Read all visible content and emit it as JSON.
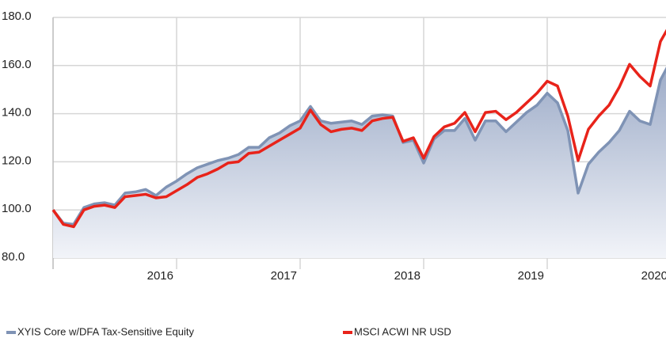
{
  "chart_data": {
    "type": "area-line",
    "categories": [
      null,
      null,
      null,
      null,
      null,
      null,
      null,
      null,
      null,
      null,
      null,
      null,
      "2016",
      null,
      null,
      null,
      null,
      null,
      null,
      null,
      null,
      null,
      null,
      null,
      "2017",
      null,
      null,
      null,
      null,
      null,
      null,
      null,
      null,
      null,
      null,
      null,
      "2018",
      null,
      null,
      null,
      null,
      null,
      null,
      null,
      null,
      null,
      null,
      null,
      "2019",
      null,
      null,
      null,
      null,
      null,
      null,
      null,
      null,
      null,
      null,
      null,
      "2020"
    ],
    "series": [
      {
        "name": "XYIS Core w/DFA Tax-Sensitive Equity",
        "color": "#7f93b5",
        "fill": true,
        "values": [
          100,
          94.5,
          94,
          101,
          102.5,
          103,
          102,
          107,
          107.5,
          108.5,
          106,
          109.5,
          112,
          115,
          117.5,
          119,
          120.5,
          121.5,
          123,
          126,
          126,
          130,
          132,
          135,
          137,
          143,
          137,
          136,
          136.5,
          137,
          135.5,
          139,
          139.5,
          139,
          128,
          129,
          119.5,
          129.5,
          133,
          133,
          138,
          129,
          137,
          137,
          132.5,
          136.5,
          140.5,
          143.5,
          148.5,
          144.5,
          133,
          107,
          119,
          124,
          128,
          133,
          141,
          137,
          135.5,
          154,
          162
        ]
      },
      {
        "name": "MSCI ACWI NR USD",
        "color": "#e8231a",
        "fill": false,
        "values": [
          100,
          94,
          93,
          100,
          101.5,
          102,
          101,
          105.5,
          106,
          106.5,
          105,
          105.5,
          108,
          110.5,
          113.5,
          115,
          117,
          119.5,
          120,
          123.5,
          124,
          126.5,
          129,
          131.5,
          134,
          141.5,
          135.5,
          132.5,
          133.5,
          134,
          133,
          137,
          138,
          138.5,
          128.5,
          130,
          121.5,
          130.5,
          134.5,
          136,
          140.5,
          132.5,
          140.5,
          141,
          137.5,
          140.5,
          144.5,
          148.5,
          153.5,
          151.5,
          139,
          120.5,
          133.5,
          139,
          143.5,
          151,
          160.5,
          155.5,
          151.5,
          170,
          177.5
        ]
      }
    ],
    "ylim": [
      80,
      180
    ],
    "yticks": [
      {
        "value": 80,
        "label": "80.0"
      },
      {
        "value": 100,
        "label": "100.0"
      },
      {
        "value": 120,
        "label": "120.0"
      },
      {
        "value": 140,
        "label": "140.0"
      },
      {
        "value": 160,
        "label": "160.0"
      },
      {
        "value": 180,
        "label": "180.0"
      }
    ],
    "grid": true,
    "legend": "bottom"
  }
}
